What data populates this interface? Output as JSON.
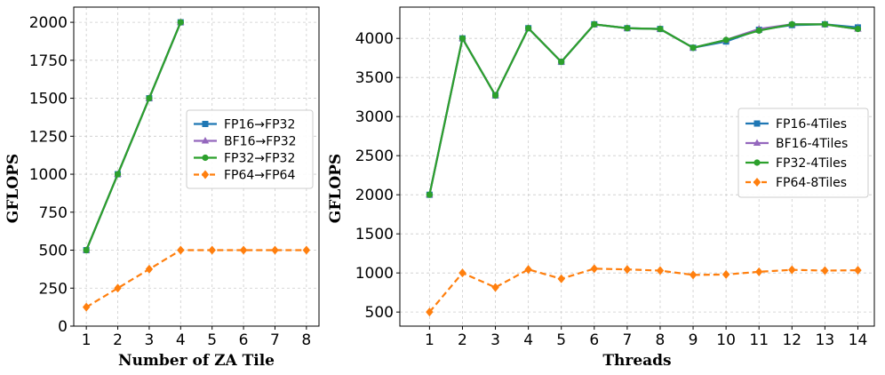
{
  "chart_data": [
    {
      "type": "line",
      "title": "",
      "xlabel": "Number of ZA Tile",
      "ylabel": "GFLOPS",
      "x": [
        1,
        2,
        3,
        4,
        5,
        6,
        7,
        8
      ],
      "xlim": [
        0.6,
        8.4
      ],
      "ylim": [
        0,
        2100
      ],
      "yticks": [
        0,
        250,
        500,
        750,
        1000,
        1250,
        1500,
        1750,
        2000
      ],
      "grid": true,
      "legend_position": "center-right",
      "series": [
        {
          "name": "FP16→FP32",
          "color": "#1f77b4",
          "marker": "square",
          "dashed": false,
          "x": [
            1,
            2,
            3,
            4
          ],
          "values": [
            500,
            1000,
            1500,
            2000
          ]
        },
        {
          "name": "BF16→FP32",
          "color": "#9467bd",
          "marker": "triangle",
          "dashed": false,
          "x": [
            1,
            2,
            3,
            4
          ],
          "values": [
            500,
            1000,
            1500,
            2000
          ]
        },
        {
          "name": "FP32→FP32",
          "color": "#2ca02c",
          "marker": "circle",
          "dashed": false,
          "x": [
            1,
            2,
            3,
            4
          ],
          "values": [
            500,
            1000,
            1500,
            2000
          ]
        },
        {
          "name": "FP64→FP64",
          "color": "#ff7f0e",
          "marker": "diamond",
          "dashed": true,
          "x": [
            1,
            2,
            3,
            4,
            5,
            6,
            7,
            8
          ],
          "values": [
            125,
            250,
            375,
            500,
            500,
            500,
            500,
            500
          ]
        }
      ]
    },
    {
      "type": "line",
      "title": "",
      "xlabel": "Threads",
      "ylabel": "GFLOPS",
      "x": [
        1,
        2,
        3,
        4,
        5,
        6,
        7,
        8,
        9,
        10,
        11,
        12,
        13,
        14
      ],
      "xlim": [
        0.1,
        14.5
      ],
      "ylim": [
        320,
        4400
      ],
      "yticks": [
        500,
        1000,
        1500,
        2000,
        2500,
        3000,
        3500,
        4000
      ],
      "grid": true,
      "legend_position": "center-right",
      "series": [
        {
          "name": "FP16-4Tiles",
          "color": "#1f77b4",
          "marker": "square",
          "dashed": false,
          "values": [
            2000,
            4000,
            3270,
            4130,
            3700,
            4180,
            4130,
            4120,
            3880,
            3960,
            4110,
            4170,
            4180,
            4140
          ]
        },
        {
          "name": "BF16-4Tiles",
          "color": "#9467bd",
          "marker": "triangle",
          "dashed": false,
          "values": [
            2000,
            4000,
            3270,
            4130,
            3700,
            4180,
            4130,
            4120,
            3880,
            3980,
            4120,
            4180,
            4180,
            4120
          ]
        },
        {
          "name": "FP32-4Tiles",
          "color": "#2ca02c",
          "marker": "circle",
          "dashed": false,
          "values": [
            2000,
            4000,
            3270,
            4130,
            3700,
            4180,
            4130,
            4120,
            3880,
            3980,
            4100,
            4180,
            4180,
            4120
          ]
        },
        {
          "name": "FP64-8Tiles",
          "color": "#ff7f0e",
          "marker": "diamond",
          "dashed": true,
          "values": [
            500,
            1000,
            815,
            1045,
            925,
            1055,
            1045,
            1030,
            975,
            980,
            1015,
            1040,
            1030,
            1035
          ]
        }
      ]
    }
  ]
}
